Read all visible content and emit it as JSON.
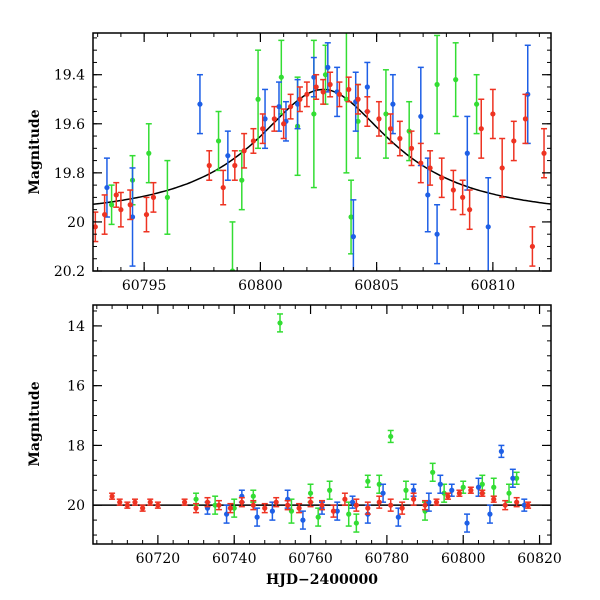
{
  "chart_data": [
    {
      "type": "scatter",
      "xlabel": "",
      "ylabel": "Magnitude",
      "xlim": [
        60792.8,
        60812.5
      ],
      "ylim": [
        20.2,
        19.23
      ],
      "y_inverted": true,
      "x_ticks": [
        60795,
        60800,
        60805,
        60810
      ],
      "y_ticks": [
        19.4,
        19.6,
        19.8,
        20,
        20.2
      ],
      "x_tick_labels": [
        "60795",
        "60800",
        "60805",
        "60810"
      ],
      "y_tick_labels": [
        "19.4",
        "19.6",
        "19.8",
        "20",
        "20.2"
      ],
      "model_curve": {
        "peak_x": 60802.7,
        "baseline_mag": 19.99,
        "amplitude_mag": 0.53,
        "width_days": 3.6
      },
      "series": [
        {
          "color": "#33dd33",
          "points": [
            [
              60793.6,
              19.93,
              0.08
            ],
            [
              60794.5,
              19.83,
              0.1
            ],
            [
              60795.2,
              19.72,
              0.12
            ],
            [
              60796.0,
              19.9,
              0.15
            ],
            [
              60798.2,
              19.67,
              0.12
            ],
            [
              60799.2,
              19.83,
              0.12
            ],
            [
              60799.9,
              19.5,
              0.2
            ],
            [
              60800.9,
              19.41,
              0.15
            ],
            [
              60801.6,
              19.61,
              0.2
            ],
            [
              60802.3,
              19.56,
              0.3
            ],
            [
              60802.8,
              19.4,
              0.12
            ],
            [
              60803.7,
              19.5,
              0.3
            ],
            [
              60804.2,
              19.59,
              0.15
            ],
            [
              60805.4,
              19.56,
              0.18
            ],
            [
              60807.6,
              19.44,
              0.2
            ],
            [
              60808.4,
              19.42,
              0.15
            ],
            [
              60809.3,
              19.52,
              0.12
            ],
            [
              60798.8,
              20.2,
              0.2
            ],
            [
              60803.9,
              19.98,
              0.15
            ],
            [
              60806.4,
              19.63,
              0.12
            ]
          ]
        },
        {
          "color": "#1e5fe6",
          "points": [
            [
              60793.4,
              19.86,
              0.12
            ],
            [
              60794.5,
              19.98,
              0.2
            ],
            [
              60797.4,
              19.52,
              0.12
            ],
            [
              60798.6,
              19.73,
              0.1
            ],
            [
              60800.2,
              19.58,
              0.12
            ],
            [
              60800.8,
              19.53,
              0.1
            ],
            [
              60801.1,
              19.59,
              0.08
            ],
            [
              60801.6,
              19.52,
              0.1
            ],
            [
              60802.3,
              19.41,
              0.08
            ],
            [
              60802.9,
              19.37,
              0.1
            ],
            [
              60803.3,
              19.47,
              0.1
            ],
            [
              60804.1,
              19.51,
              0.12
            ],
            [
              60804.6,
              19.45,
              0.1
            ],
            [
              60805.7,
              19.52,
              0.12
            ],
            [
              60806.9,
              19.57,
              0.2
            ],
            [
              60807.2,
              19.89,
              0.15
            ],
            [
              60808.9,
              19.72,
              0.15
            ],
            [
              60809.8,
              20.02,
              0.2
            ],
            [
              60811.5,
              19.48,
              0.2
            ],
            [
              60804.0,
              20.06,
              0.15
            ],
            [
              60807.6,
              20.05,
              0.12
            ]
          ]
        },
        {
          "color": "#ee3322",
          "points": [
            [
              60792.9,
              20.02,
              0.06
            ],
            [
              60793.3,
              19.97,
              0.08
            ],
            [
              60793.8,
              19.89,
              0.05
            ],
            [
              60794.0,
              19.95,
              0.07
            ],
            [
              60794.4,
              19.93,
              0.06
            ],
            [
              60795.1,
              19.97,
              0.07
            ],
            [
              60795.4,
              19.9,
              0.06
            ],
            [
              60797.8,
              19.77,
              0.06
            ],
            [
              60798.4,
              19.86,
              0.07
            ],
            [
              60798.9,
              19.77,
              0.06
            ],
            [
              60799.3,
              19.71,
              0.07
            ],
            [
              60799.7,
              19.67,
              0.05
            ],
            [
              60800.1,
              19.62,
              0.06
            ],
            [
              60800.6,
              19.58,
              0.05
            ],
            [
              60801.0,
              19.6,
              0.06
            ],
            [
              60801.3,
              19.53,
              0.05
            ],
            [
              60801.7,
              19.5,
              0.05
            ],
            [
              60802.0,
              19.48,
              0.05
            ],
            [
              60802.4,
              19.45,
              0.05
            ],
            [
              60802.7,
              19.47,
              0.05
            ],
            [
              60803.0,
              19.44,
              0.05
            ],
            [
              60803.4,
              19.48,
              0.05
            ],
            [
              60803.8,
              19.46,
              0.05
            ],
            [
              60804.2,
              19.5,
              0.06
            ],
            [
              60804.6,
              19.55,
              0.06
            ],
            [
              60805.1,
              19.58,
              0.07
            ],
            [
              60805.6,
              19.62,
              0.06
            ],
            [
              60806.0,
              19.66,
              0.07
            ],
            [
              60806.5,
              19.7,
              0.07
            ],
            [
              60806.9,
              19.76,
              0.08
            ],
            [
              60807.3,
              19.78,
              0.07
            ],
            [
              60807.8,
              19.82,
              0.08
            ],
            [
              60808.3,
              19.87,
              0.08
            ],
            [
              60808.7,
              19.9,
              0.07
            ],
            [
              60809.0,
              19.95,
              0.08
            ],
            [
              60809.5,
              19.62,
              0.12
            ],
            [
              60810.0,
              19.56,
              0.1
            ],
            [
              60810.4,
              19.78,
              0.12
            ],
            [
              60810.9,
              19.67,
              0.08
            ],
            [
              60811.4,
              19.58,
              0.1
            ],
            [
              60811.7,
              20.1,
              0.08
            ],
            [
              60812.2,
              19.72,
              0.1
            ]
          ]
        }
      ]
    },
    {
      "type": "scatter",
      "xlabel": "HJD−2400000",
      "ylabel": "Magnitude",
      "xlim": [
        60703,
        60823
      ],
      "ylim": [
        21.3,
        13.3
      ],
      "y_inverted": true,
      "x_ticks": [
        60720,
        60740,
        60760,
        60780,
        60800,
        60820
      ],
      "y_ticks": [
        14,
        16,
        18,
        20
      ],
      "x_tick_labels": [
        "60720",
        "60740",
        "60760",
        "60780",
        "60800",
        "60820"
      ],
      "y_tick_labels": [
        "14",
        "16",
        "18",
        "20"
      ],
      "baseline_mag": 20.0,
      "series": [
        {
          "color": "#33dd33",
          "points": [
            [
              60730,
              19.8,
              0.2
            ],
            [
              60735,
              20.0,
              0.3
            ],
            [
              60740,
              20.1,
              0.3
            ],
            [
              60745,
              19.7,
              0.2
            ],
            [
              60752,
              13.9,
              0.3
            ],
            [
              60755,
              20.2,
              0.4
            ],
            [
              60760,
              19.6,
              0.3
            ],
            [
              60762,
              20.4,
              0.3
            ],
            [
              60765,
              19.5,
              0.3
            ],
            [
              60770,
              20.3,
              0.4
            ],
            [
              60772,
              20.6,
              0.3
            ],
            [
              60775,
              19.2,
              0.2
            ],
            [
              60778,
              19.3,
              0.3
            ],
            [
              60781,
              17.7,
              0.2
            ],
            [
              60785,
              19.5,
              0.3
            ],
            [
              60790,
              20.2,
              0.3
            ],
            [
              60792,
              18.9,
              0.3
            ],
            [
              60795,
              19.6,
              0.3
            ],
            [
              60800,
              19.4,
              0.2
            ],
            [
              60805,
              19.3,
              0.3
            ],
            [
              60808,
              19.4,
              0.3
            ],
            [
              60812,
              19.6,
              0.3
            ],
            [
              60814,
              19.1,
              0.2
            ]
          ]
        },
        {
          "color": "#1e5fe6",
          "points": [
            [
              60733,
              20.1,
              0.2
            ],
            [
              60738,
              20.3,
              0.3
            ],
            [
              60742,
              19.7,
              0.2
            ],
            [
              60746,
              20.4,
              0.3
            ],
            [
              60750,
              20.2,
              0.3
            ],
            [
              60754,
              19.8,
              0.3
            ],
            [
              60758,
              20.5,
              0.3
            ],
            [
              60763,
              20.1,
              0.2
            ],
            [
              60767,
              20.2,
              0.3
            ],
            [
              60771,
              19.9,
              0.2
            ],
            [
              60775,
              20.3,
              0.3
            ],
            [
              60779,
              19.6,
              0.3
            ],
            [
              60783,
              20.4,
              0.3
            ],
            [
              60787,
              19.5,
              0.2
            ],
            [
              60791,
              19.9,
              0.3
            ],
            [
              60794,
              19.3,
              0.3
            ],
            [
              60797,
              19.5,
              0.2
            ],
            [
              60801,
              20.6,
              0.3
            ],
            [
              60804,
              19.4,
              0.3
            ],
            [
              60807,
              20.3,
              0.3
            ],
            [
              60810,
              18.2,
              0.2
            ],
            [
              60813,
              19.1,
              0.3
            ],
            [
              60816,
              20.0,
              0.2
            ]
          ]
        },
        {
          "color": "#ee3322",
          "points": [
            [
              60708,
              19.7,
              0.1
            ],
            [
              60710,
              19.9,
              0.1
            ],
            [
              60712,
              20.0,
              0.1
            ],
            [
              60714,
              19.9,
              0.1
            ],
            [
              60716,
              20.1,
              0.1
            ],
            [
              60718,
              19.9,
              0.1
            ],
            [
              60720,
              20.0,
              0.1
            ],
            [
              60727,
              19.9,
              0.1
            ],
            [
              60730,
              20.1,
              0.15
            ],
            [
              60733,
              19.9,
              0.15
            ],
            [
              60736,
              20.0,
              0.15
            ],
            [
              60739,
              20.1,
              0.15
            ],
            [
              60742,
              19.9,
              0.15
            ],
            [
              60745,
              20.0,
              0.15
            ],
            [
              60748,
              20.1,
              0.15
            ],
            [
              60751,
              19.9,
              0.15
            ],
            [
              60754,
              20.0,
              0.15
            ],
            [
              60757,
              20.1,
              0.15
            ],
            [
              60760,
              19.9,
              0.15
            ],
            [
              60763,
              20.0,
              0.15
            ],
            [
              60766,
              20.2,
              0.2
            ],
            [
              60769,
              19.8,
              0.2
            ],
            [
              60772,
              20.0,
              0.2
            ],
            [
              60775,
              20.1,
              0.2
            ],
            [
              60778,
              19.9,
              0.2
            ],
            [
              60781,
              20.0,
              0.2
            ],
            [
              60784,
              20.1,
              0.2
            ],
            [
              60787,
              19.8,
              0.2
            ],
            [
              60790,
              20.0,
              0.15
            ],
            [
              60793,
              19.9,
              0.1
            ],
            [
              60796,
              19.7,
              0.1
            ],
            [
              60799,
              19.6,
              0.1
            ],
            [
              60802,
              19.5,
              0.1
            ],
            [
              60805,
              19.6,
              0.1
            ],
            [
              60808,
              19.8,
              0.1
            ],
            [
              60811,
              20.0,
              0.15
            ],
            [
              60814,
              19.9,
              0.15
            ],
            [
              60817,
              20.0,
              0.1
            ]
          ]
        }
      ]
    }
  ]
}
